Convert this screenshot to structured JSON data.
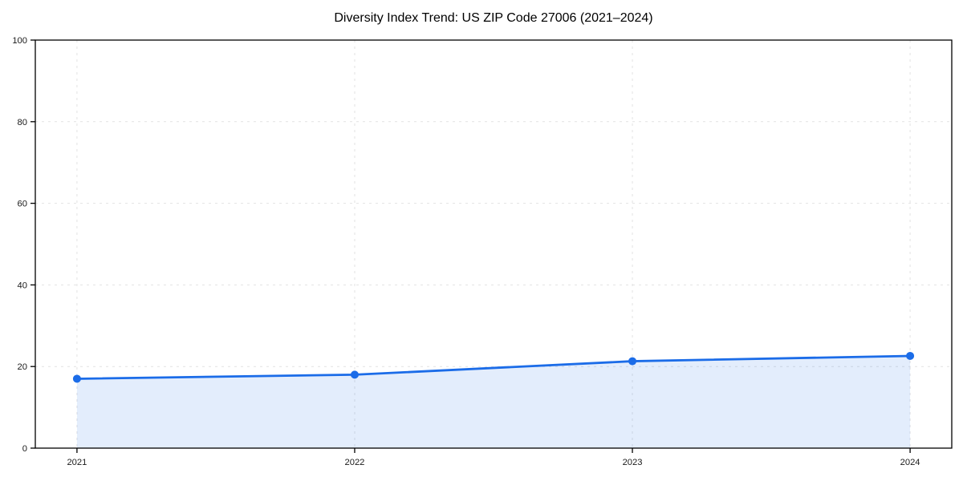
{
  "page": {
    "background": "#ffffff"
  },
  "chart_data": {
    "type": "line",
    "title": "Diversity Index Trend: US ZIP Code 27006 (2021–2024)",
    "categories": [
      "2021",
      "2022",
      "2023",
      "2024"
    ],
    "series": [
      {
        "name": "Diversity Index",
        "values": [
          17,
          18,
          21.3,
          22.6
        ]
      }
    ],
    "xlabel": "",
    "ylabel": "",
    "ylim": [
      0,
      100
    ],
    "yticks": [
      0,
      20,
      40,
      60,
      80,
      100
    ],
    "grid": true,
    "grid_style": "dashed",
    "legend": "none",
    "area_fill": true,
    "marker": "circle",
    "colors": {
      "line": "#1b6ce8",
      "marker": "#1b6ce8",
      "area_fill": "#1b6ce8",
      "grid": "#e2e2e2",
      "axis": "#000000",
      "tick_label": "#1a1a1a",
      "title": "#000000",
      "background": "#ffffff"
    },
    "area_fill_opacity": 0.12
  }
}
